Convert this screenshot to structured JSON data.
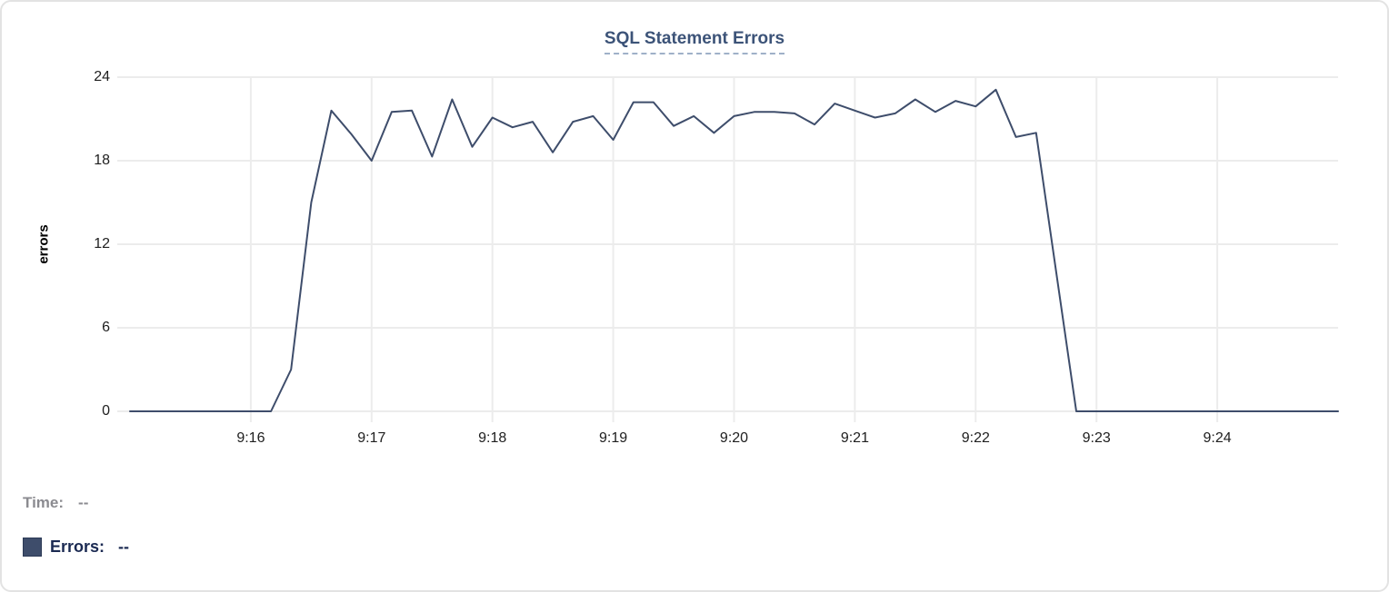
{
  "header": {
    "title": "SQL Statement Errors"
  },
  "legend": {
    "time_label": "Time:",
    "time_value": "--",
    "errors_label": "Errors:",
    "errors_value": "--"
  },
  "colors": {
    "line": "#3e4d6b",
    "grid": "#ececec",
    "title": "#3c5378",
    "title_underline": "#9fb0c8",
    "tick_text": "#202020",
    "time_text": "#8b8b90",
    "errors_text": "#1b2a52",
    "swatch_fill": "#3e4d6b",
    "card_border": "#e3e3e3",
    "background": "#ffffff"
  },
  "chart_data": {
    "type": "line",
    "title": "SQL Statement Errors",
    "xlabel": "",
    "ylabel": "errors",
    "ylim": [
      0,
      24
    ],
    "y_ticks": [
      0,
      6,
      12,
      18,
      24
    ],
    "x_tick_labels": [
      "9:16",
      "9:17",
      "9:18",
      "9:19",
      "9:20",
      "9:21",
      "9:22",
      "9:23",
      "9:24"
    ],
    "x_range": [
      "9:15:00",
      "9:25:00"
    ],
    "grid": true,
    "legend_position": "bottom-left",
    "series": [
      {
        "name": "Errors",
        "x": [
          "9:15:00",
          "9:15:10",
          "9:15:20",
          "9:15:30",
          "9:15:40",
          "9:15:50",
          "9:16:00",
          "9:16:10",
          "9:16:20",
          "9:16:30",
          "9:16:40",
          "9:16:50",
          "9:17:00",
          "9:17:10",
          "9:17:20",
          "9:17:30",
          "9:17:40",
          "9:17:50",
          "9:18:00",
          "9:18:10",
          "9:18:20",
          "9:18:30",
          "9:18:40",
          "9:18:50",
          "9:19:00",
          "9:19:10",
          "9:19:20",
          "9:19:30",
          "9:19:40",
          "9:19:50",
          "9:20:00",
          "9:20:10",
          "9:20:20",
          "9:20:30",
          "9:20:40",
          "9:20:50",
          "9:21:00",
          "9:21:10",
          "9:21:20",
          "9:21:30",
          "9:21:40",
          "9:21:50",
          "9:22:00",
          "9:22:10",
          "9:22:20",
          "9:22:30",
          "9:22:40",
          "9:22:50",
          "9:23:00",
          "9:23:10",
          "9:23:20",
          "9:23:30",
          "9:23:40",
          "9:23:50",
          "9:24:00",
          "9:24:10",
          "9:24:20",
          "9:24:30",
          "9:24:40",
          "9:24:50",
          "9:25:00"
        ],
        "values": [
          0,
          0,
          0,
          0,
          0,
          0,
          0,
          0,
          3,
          15,
          21.6,
          19.9,
          18,
          21.5,
          21.6,
          18.3,
          22.4,
          19,
          21.1,
          20.4,
          20.8,
          18.6,
          20.8,
          21.2,
          19.5,
          22.2,
          22.2,
          20.5,
          21.2,
          20,
          21.2,
          21.5,
          21.5,
          21.4,
          20.6,
          22.1,
          21.6,
          21.1,
          21.4,
          22.4,
          21.5,
          22.3,
          21.9,
          23.1,
          19.7,
          20,
          10,
          0,
          0,
          0,
          0,
          0,
          0,
          0,
          0,
          0,
          0,
          0,
          0,
          0,
          0
        ]
      }
    ]
  }
}
